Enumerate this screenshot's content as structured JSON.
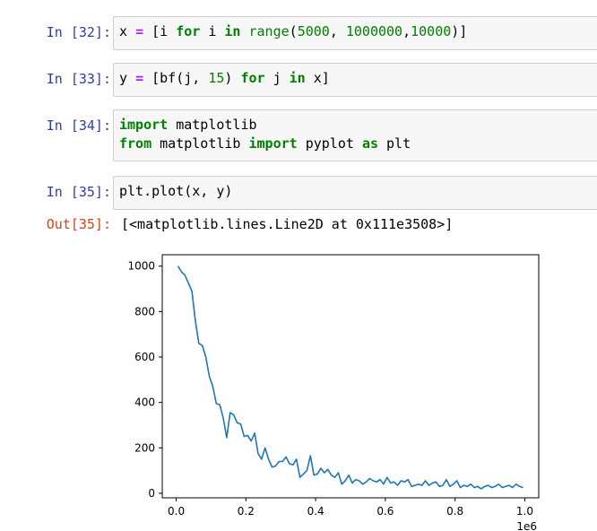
{
  "cells": [
    {
      "prompt": "In [32]:",
      "tokens": [
        {
          "t": "x ",
          "c": ""
        },
        {
          "t": "=",
          "c": "op"
        },
        {
          "t": " [i ",
          "c": ""
        },
        {
          "t": "for",
          "c": "kw"
        },
        {
          "t": " i ",
          "c": ""
        },
        {
          "t": "in",
          "c": "kw"
        },
        {
          "t": " ",
          "c": ""
        },
        {
          "t": "range",
          "c": "bi"
        },
        {
          "t": "(",
          "c": ""
        },
        {
          "t": "5000",
          "c": "num"
        },
        {
          "t": ", ",
          "c": ""
        },
        {
          "t": "1000000",
          "c": "num"
        },
        {
          "t": ",",
          "c": ""
        },
        {
          "t": "10000",
          "c": "num"
        },
        {
          "t": ")]",
          "c": ""
        }
      ]
    },
    {
      "prompt": "In [33]:",
      "tokens": [
        {
          "t": "y ",
          "c": ""
        },
        {
          "t": "=",
          "c": "op"
        },
        {
          "t": " [bf(j, ",
          "c": ""
        },
        {
          "t": "15",
          "c": "num"
        },
        {
          "t": ") ",
          "c": ""
        },
        {
          "t": "for",
          "c": "kw"
        },
        {
          "t": " j ",
          "c": ""
        },
        {
          "t": "in",
          "c": "kw"
        },
        {
          "t": " x]",
          "c": ""
        }
      ]
    },
    {
      "prompt": "In [34]:",
      "lines": [
        [
          {
            "t": "import",
            "c": "kw"
          },
          {
            "t": " matplotlib",
            "c": ""
          }
        ],
        [
          {
            "t": "from",
            "c": "kw"
          },
          {
            "t": " matplotlib ",
            "c": ""
          },
          {
            "t": "import",
            "c": "kw"
          },
          {
            "t": " pyplot ",
            "c": ""
          },
          {
            "t": "as",
            "c": "kw"
          },
          {
            "t": " plt",
            "c": ""
          }
        ]
      ]
    },
    {
      "prompt": "In [35]:",
      "tokens": [
        {
          "t": "plt.plot(x, y)",
          "c": ""
        }
      ]
    }
  ],
  "output": {
    "prompt": "Out[35]:",
    "text": "[<matplotlib.lines.Line2D at 0x111e3508>]"
  },
  "chart_data": {
    "type": "line",
    "title": "",
    "xlabel": "",
    "ylabel": "",
    "x_offset_label": "1e6",
    "xlim": [
      -0.04,
      1.04
    ],
    "ylim": [
      -20,
      1050
    ],
    "xticks": [
      0.0,
      0.2,
      0.4,
      0.6,
      0.8,
      1.0
    ],
    "xtick_labels": [
      "0.0",
      "0.2",
      "0.4",
      "0.6",
      "0.8",
      "1.0"
    ],
    "yticks": [
      0,
      200,
      400,
      600,
      800,
      1000
    ],
    "ytick_labels": [
      "0",
      "200",
      "400",
      "600",
      "800",
      "1000"
    ],
    "line_color": "#1f77b4",
    "series": [
      {
        "x": [
          0.005,
          0.015,
          0.025,
          0.035,
          0.045,
          0.055,
          0.065,
          0.075,
          0.085,
          0.095,
          0.105,
          0.115,
          0.125,
          0.135,
          0.145,
          0.155,
          0.165,
          0.175,
          0.185,
          0.195,
          0.205,
          0.215,
          0.225,
          0.235,
          0.245,
          0.255,
          0.265,
          0.275,
          0.285,
          0.295,
          0.305,
          0.315,
          0.325,
          0.335,
          0.345,
          0.355,
          0.365,
          0.375,
          0.385,
          0.395,
          0.405,
          0.415,
          0.425,
          0.435,
          0.445,
          0.455,
          0.465,
          0.475,
          0.485,
          0.495,
          0.505,
          0.515,
          0.525,
          0.535,
          0.545,
          0.555,
          0.565,
          0.575,
          0.585,
          0.595,
          0.605,
          0.615,
          0.625,
          0.635,
          0.645,
          0.655,
          0.665,
          0.675,
          0.685,
          0.695,
          0.705,
          0.715,
          0.725,
          0.735,
          0.745,
          0.755,
          0.765,
          0.775,
          0.785,
          0.795,
          0.805,
          0.815,
          0.825,
          0.835,
          0.845,
          0.855,
          0.865,
          0.875,
          0.885,
          0.895,
          0.905,
          0.915,
          0.925,
          0.935,
          0.945,
          0.955,
          0.965,
          0.975,
          0.985,
          0.995
        ],
        "y": [
          1000,
          975,
          960,
          925,
          890,
          760,
          660,
          650,
          600,
          515,
          470,
          395,
          390,
          330,
          245,
          355,
          345,
          310,
          305,
          250,
          255,
          230,
          265,
          175,
          150,
          200,
          150,
          115,
          120,
          140,
          140,
          160,
          130,
          125,
          150,
          70,
          85,
          100,
          165,
          80,
          85,
          110,
          90,
          105,
          80,
          70,
          90,
          40,
          55,
          80,
          45,
          60,
          55,
          40,
          50,
          65,
          55,
          50,
          60,
          40,
          70,
          45,
          50,
          35,
          55,
          50,
          60,
          30,
          35,
          40,
          35,
          55,
          35,
          45,
          50,
          30,
          35,
          60,
          30,
          40,
          55,
          25,
          35,
          30,
          40,
          25,
          30,
          20,
          30,
          35,
          25,
          30,
          40,
          25,
          30,
          35,
          25,
          40,
          30,
          25
        ]
      }
    ]
  }
}
